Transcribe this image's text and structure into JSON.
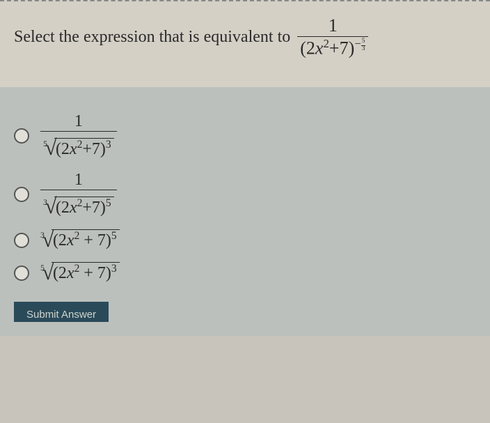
{
  "question": {
    "prompt_text": "Select the expression that is equivalent to",
    "main_expr": {
      "numerator": "1",
      "base_open": "(2",
      "base_var": "x",
      "base_sup": "2",
      "base_close": "+7)",
      "neg_sign": "−",
      "exp_num": "5",
      "exp_den": "3"
    }
  },
  "options": [
    {
      "type": "fraction_root",
      "numerator": "1",
      "root_index": "5",
      "inner_open": "(2",
      "inner_var": "x",
      "inner_sup": "2",
      "inner_close": "+7)",
      "outer_sup": "3"
    },
    {
      "type": "fraction_root",
      "numerator": "1",
      "root_index": "3",
      "inner_open": "(2",
      "inner_var": "x",
      "inner_sup": "2",
      "inner_close": "+7)",
      "outer_sup": "5"
    },
    {
      "type": "root_only",
      "root_index": "3",
      "inner_open": "(2",
      "inner_var": "x",
      "inner_sup": "2",
      "inner_close": " + 7)",
      "outer_sup": "5"
    },
    {
      "type": "root_only",
      "root_index": "5",
      "inner_open": "(2",
      "inner_var": "x",
      "inner_sup": "2",
      "inner_close": " + 7)",
      "outer_sup": "3"
    }
  ],
  "submit_label": "Submit Answer",
  "styling": {
    "page_bg": "#c8c4bc",
    "question_bg": "#d4d0c6",
    "options_bg": "#bcc0bc",
    "text_color": "#2a2a2a",
    "submit_bg": "#2a4a5a",
    "submit_fg": "#d0d4cc",
    "question_fontsize": 24,
    "option_fontsize": 24,
    "radio_size": 22,
    "radio_border": "#555"
  }
}
